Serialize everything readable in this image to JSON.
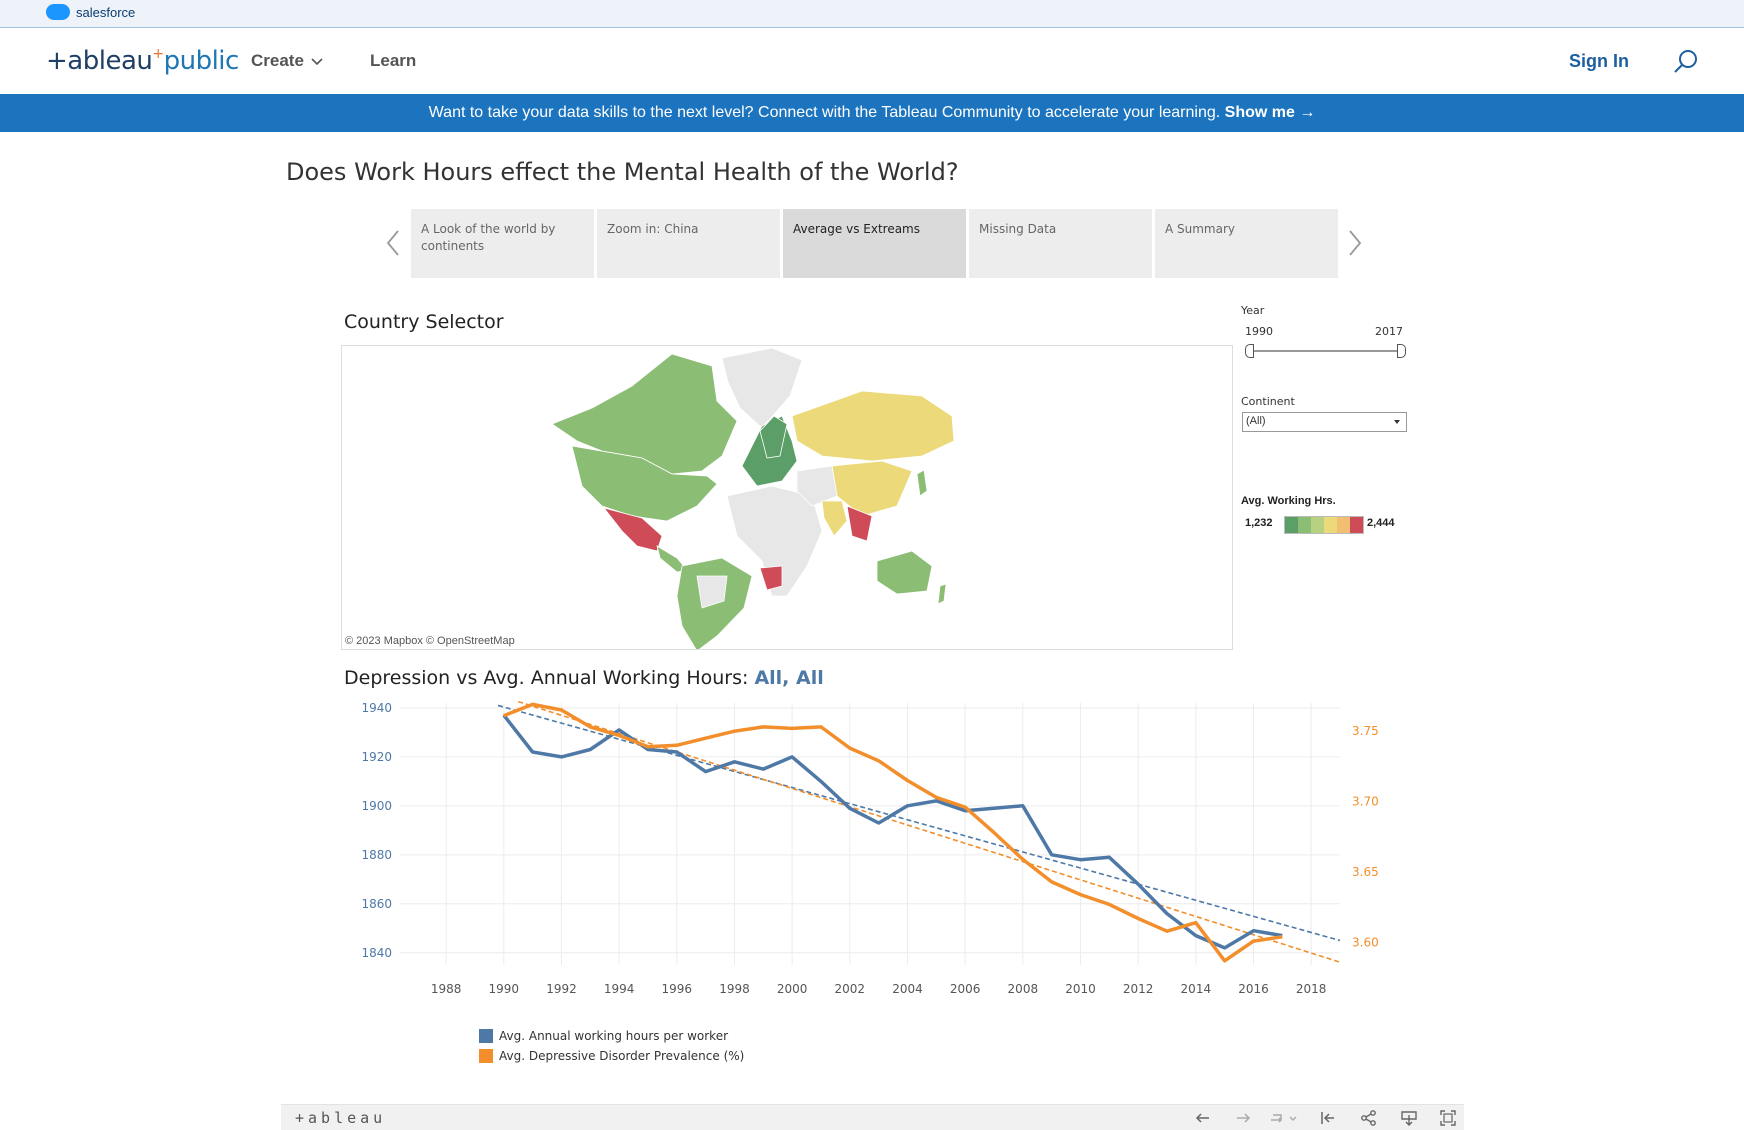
{
  "salesforce": {
    "label": "salesforce"
  },
  "nav": {
    "logo_main": "+ableau",
    "logo_plus": "+",
    "logo_pub": "public",
    "create": "Create",
    "learn": "Learn",
    "sign_in": "Sign In"
  },
  "banner": {
    "text": "Want to take your data skills to the next level? Connect with the Tableau Community to accelerate your learning.",
    "link": "Show me →"
  },
  "viz": {
    "title": "Does Work Hours effect the Mental Health of the World?",
    "story_points": [
      "A Look of the world by continents",
      "Zoom in: China",
      "Average vs Extreams",
      "Missing Data",
      "A Summary"
    ],
    "active_story_point": 2
  },
  "map": {
    "title": "Country Selector",
    "attribution": "© 2023 Mapbox  © OpenStreetMap"
  },
  "filters": {
    "year_label": "Year",
    "year_min": "1990",
    "year_max": "2017",
    "continent_label": "Continent",
    "continent_value": "(All)",
    "legend_title": "Avg. Working Hrs.",
    "legend_min": "1,232",
    "legend_max": "2,444",
    "legend_colors": [
      "#5c9e68",
      "#8bbd74",
      "#b6d17f",
      "#ecd97a",
      "#f0bf72",
      "#cf4b58"
    ]
  },
  "chart": {
    "title": "Depression vs Avg. Annual Working Hours:",
    "title_filter": "All, All"
  },
  "chart_data": {
    "type": "line",
    "x_ticks": [
      1988,
      1990,
      1992,
      1994,
      1996,
      1998,
      2000,
      2002,
      2004,
      2006,
      2008,
      2010,
      2012,
      2014,
      2016,
      2018
    ],
    "xlim": [
      1986.4,
      2019
    ],
    "y_left_ticks": [
      1840,
      1860,
      1880,
      1900,
      1920,
      1940
    ],
    "y_left_lim": [
      1835,
      1942
    ],
    "y_right_ticks": [
      3.6,
      3.65,
      3.7,
      3.75
    ],
    "y_right_lim": [
      3.584,
      3.77
    ],
    "colors": {
      "hours": "#4e79a7",
      "depression": "#f28e2b"
    },
    "series": [
      {
        "name": "Avg. Annual working hours per worker",
        "axis": "left",
        "x": [
          1990,
          1991,
          1992,
          1993,
          1994,
          1995,
          1996,
          1997,
          1998,
          1999,
          2000,
          2001,
          2002,
          2003,
          2004,
          2005,
          2006,
          2007,
          2008,
          2009,
          2010,
          2011,
          2012,
          2013,
          2014,
          2015,
          2016,
          2017
        ],
        "values": [
          1937,
          1922,
          1920,
          1923,
          1931,
          1923,
          1922,
          1914,
          1918,
          1915,
          1920,
          1910,
          1899,
          1893,
          1900,
          1902,
          1898,
          1899,
          1900,
          1880,
          1878,
          1879,
          1868,
          1856,
          1847,
          1842,
          1849,
          1847
        ]
      },
      {
        "name": "Avg. Depressive Disorder Prevalence (%)",
        "axis": "right",
        "x": [
          1990,
          1991,
          1992,
          1993,
          1994,
          1995,
          1996,
          1997,
          1998,
          1999,
          2000,
          2001,
          2002,
          2003,
          2004,
          2005,
          2006,
          2007,
          2008,
          2009,
          2010,
          2011,
          2012,
          2013,
          2014,
          2015,
          2016,
          2017
        ],
        "values": [
          3.761,
          3.769,
          3.765,
          3.753,
          3.747,
          3.739,
          3.74,
          3.745,
          3.75,
          3.753,
          3.752,
          3.753,
          3.738,
          3.729,
          3.715,
          3.703,
          3.696,
          3.678,
          3.659,
          3.643,
          3.634,
          3.627,
          3.617,
          3.608,
          3.614,
          3.587,
          3.601,
          3.604
        ]
      }
    ],
    "trendlines": [
      {
        "series": "Avg. Annual working hours per worker",
        "axis": "left",
        "from": [
          1989.8,
          1941
        ],
        "to": [
          2019,
          1845
        ]
      },
      {
        "series": "Avg. Depressive Disorder Prevalence (%)",
        "axis": "right",
        "from": [
          1990.5,
          3.771
        ],
        "to": [
          2019,
          3.586
        ]
      }
    ],
    "legend": [
      "Avg. Annual working hours per worker",
      "Avg. Depressive Disorder Prevalence (%)"
    ],
    "grid": true
  },
  "toolbar": {
    "logo": "+ableau"
  }
}
